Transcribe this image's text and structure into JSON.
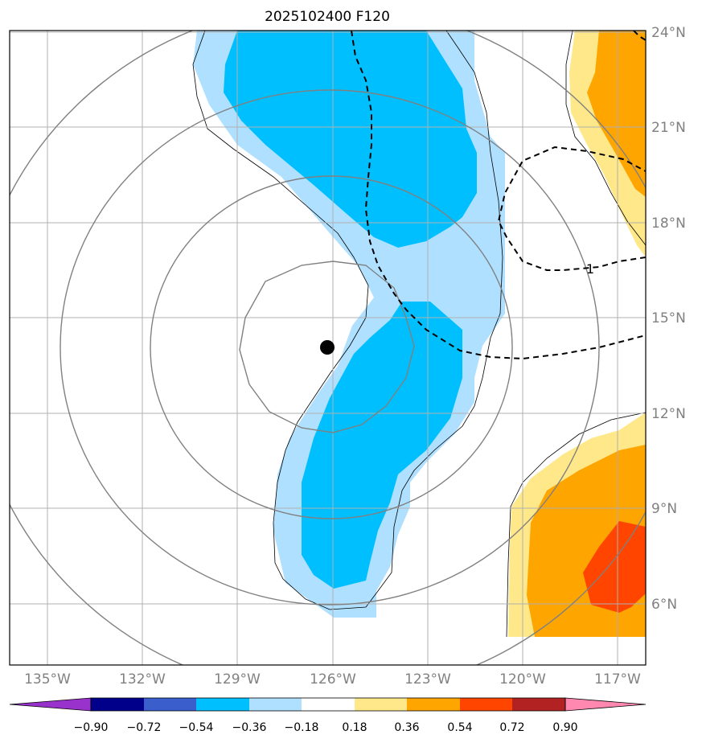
{
  "title": "2025102400 F120",
  "map": {
    "longitude_labels": [
      "135°W",
      "132°W",
      "129°W",
      "126°W",
      "123°W",
      "120°W",
      "117°W"
    ],
    "latitude_labels": [
      "24°N",
      "21°N",
      "18°N",
      "15°N",
      "12°N",
      "9°N",
      "6°N"
    ],
    "storm_center_marker": "filled-black-circle",
    "dashed_contour_label": "1"
  },
  "colorbar": {
    "tick_labels": [
      "−0.90",
      "−0.72",
      "−0.54",
      "−0.36",
      "−0.18",
      "0.18",
      "0.36",
      "0.54",
      "0.72",
      "0.90"
    ],
    "colors": [
      "#9932cc",
      "#00008b",
      "#3a5fcd",
      "#00bfff",
      "#b0e0ff",
      "#ffffff",
      "#ffe88a",
      "#ffa500",
      "#ff4500",
      "#b22222",
      "#ff88b0"
    ]
  }
}
